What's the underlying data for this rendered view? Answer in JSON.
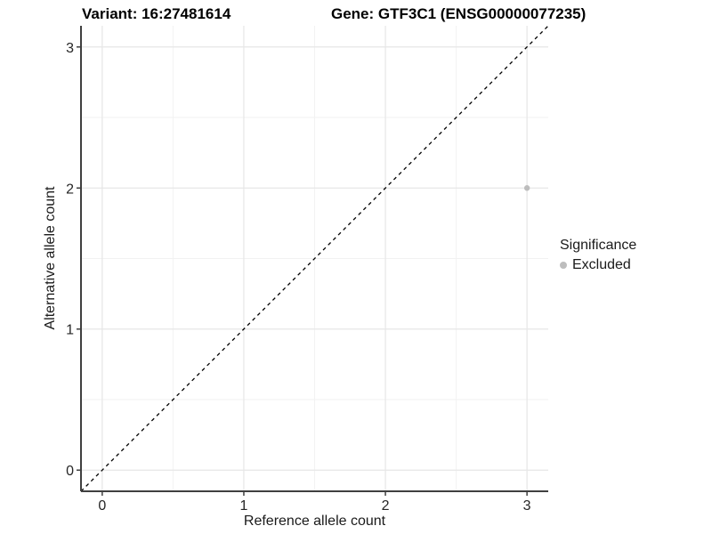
{
  "titles": {
    "variant": "Variant: 16:27481614",
    "gene": "Gene: GTF3C1 (ENSG00000077235)"
  },
  "chart_data": {
    "type": "scatter",
    "xlabel": "Reference allele count",
    "ylabel": "Alternative allele count",
    "xlim": [
      -0.15,
      3.15
    ],
    "ylim": [
      -0.15,
      3.15
    ],
    "x_ticks": [
      0,
      1,
      2,
      3
    ],
    "y_ticks": [
      0,
      1,
      2,
      3
    ],
    "x_minor_ticks": [
      0.5,
      1.5,
      2.5
    ],
    "y_minor_ticks": [
      0.5,
      1.5,
      2.5
    ],
    "grid": true,
    "points": [
      {
        "x": 3,
        "y": 2,
        "series": "Excluded"
      }
    ],
    "identity_line": {
      "style": "dashed",
      "slope": 1,
      "intercept": 0
    },
    "series": [
      {
        "name": "Excluded",
        "color": "#bdbdbd"
      }
    ],
    "legend": {
      "title": "Significance",
      "position": "right",
      "items": [
        {
          "label": "Excluded",
          "color": "#bdbdbd"
        }
      ]
    }
  },
  "colors": {
    "background": "#ffffff",
    "grid_major": "#e6e6e6",
    "grid_minor": "#f2f2f2",
    "axis_line": "#404040",
    "tick_label": "#262626",
    "point": "#bdbdbd",
    "identity_line": "#000000"
  }
}
